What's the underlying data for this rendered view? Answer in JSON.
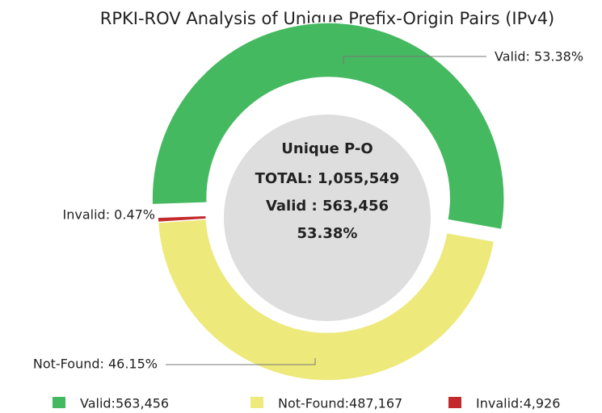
{
  "chart_data": {
    "type": "donut",
    "title": "RPKI-ROV Analysis of Unique Prefix-Origin Pairs (IPv4)",
    "categories": [
      "Valid",
      "Not-Found",
      "Invalid"
    ],
    "values": [
      53.38,
      46.15,
      0.47
    ],
    "value_labels": [
      "Valid: 53.38%",
      "Not-Found: 46.15%",
      "Invalid: 0.47%"
    ],
    "colors": [
      "#45b960",
      "#ede97b",
      "#c42a2c"
    ],
    "legend_labels": [
      "Valid:563,456",
      "Not-Found:487,167",
      "Invalid:4,926"
    ],
    "center_text": [
      "Unique P-O",
      "TOTAL: 1,055,549",
      "Valid : 563,456",
      "53.38%"
    ]
  }
}
